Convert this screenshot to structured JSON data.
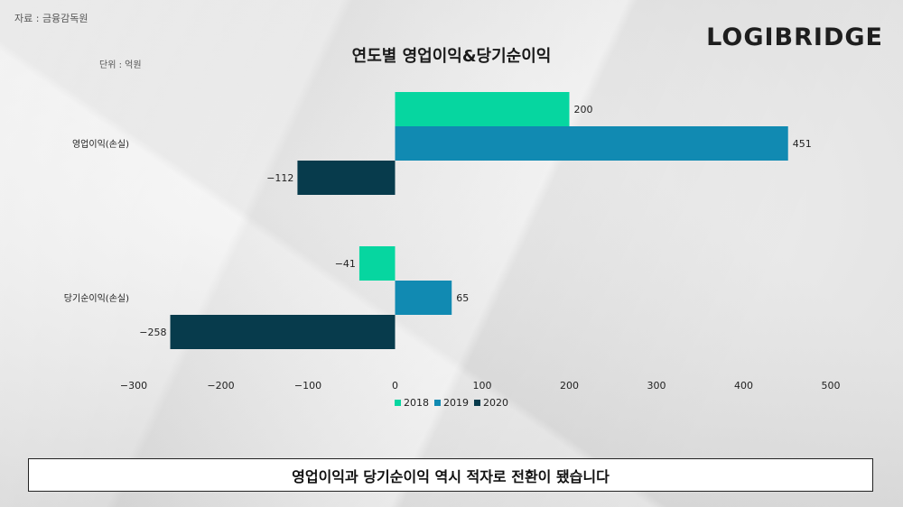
{
  "header": {
    "source": "자료 : 금융감독원",
    "unit": "단위 : 억원",
    "logo": "LOGIBRIDGE",
    "title": "연도별 영업이익&당기순이익"
  },
  "caption": "영업이익과 당기순이익 역시 적자로 전환이 됐습니다",
  "chart_data": {
    "type": "bar",
    "orientation": "horizontal",
    "title": "연도별 영업이익&당기순이익",
    "categories": [
      "영업이익(손실)",
      "당기순이익(손실)"
    ],
    "series": [
      {
        "name": "2018",
        "color": "#06d6a0",
        "values": [
          200,
          -41
        ]
      },
      {
        "name": "2019",
        "color": "#118ab2",
        "values": [
          451,
          65
        ]
      },
      {
        "name": "2020",
        "color": "#073b4c",
        "values": [
          -112,
          -258
        ]
      }
    ],
    "xlim": [
      -300,
      500
    ],
    "xticks": [
      -300,
      -200,
      -100,
      0,
      100,
      200,
      300,
      400,
      500
    ],
    "tick_labels": [
      "−300",
      "−200",
      "−100",
      "0",
      "100",
      "200",
      "300",
      "400",
      "500"
    ],
    "value_labels": [
      [
        "200",
        "−41"
      ],
      [
        "451",
        "65"
      ],
      [
        "−112",
        "−258"
      ]
    ],
    "legend": "bottom",
    "grid": false
  }
}
